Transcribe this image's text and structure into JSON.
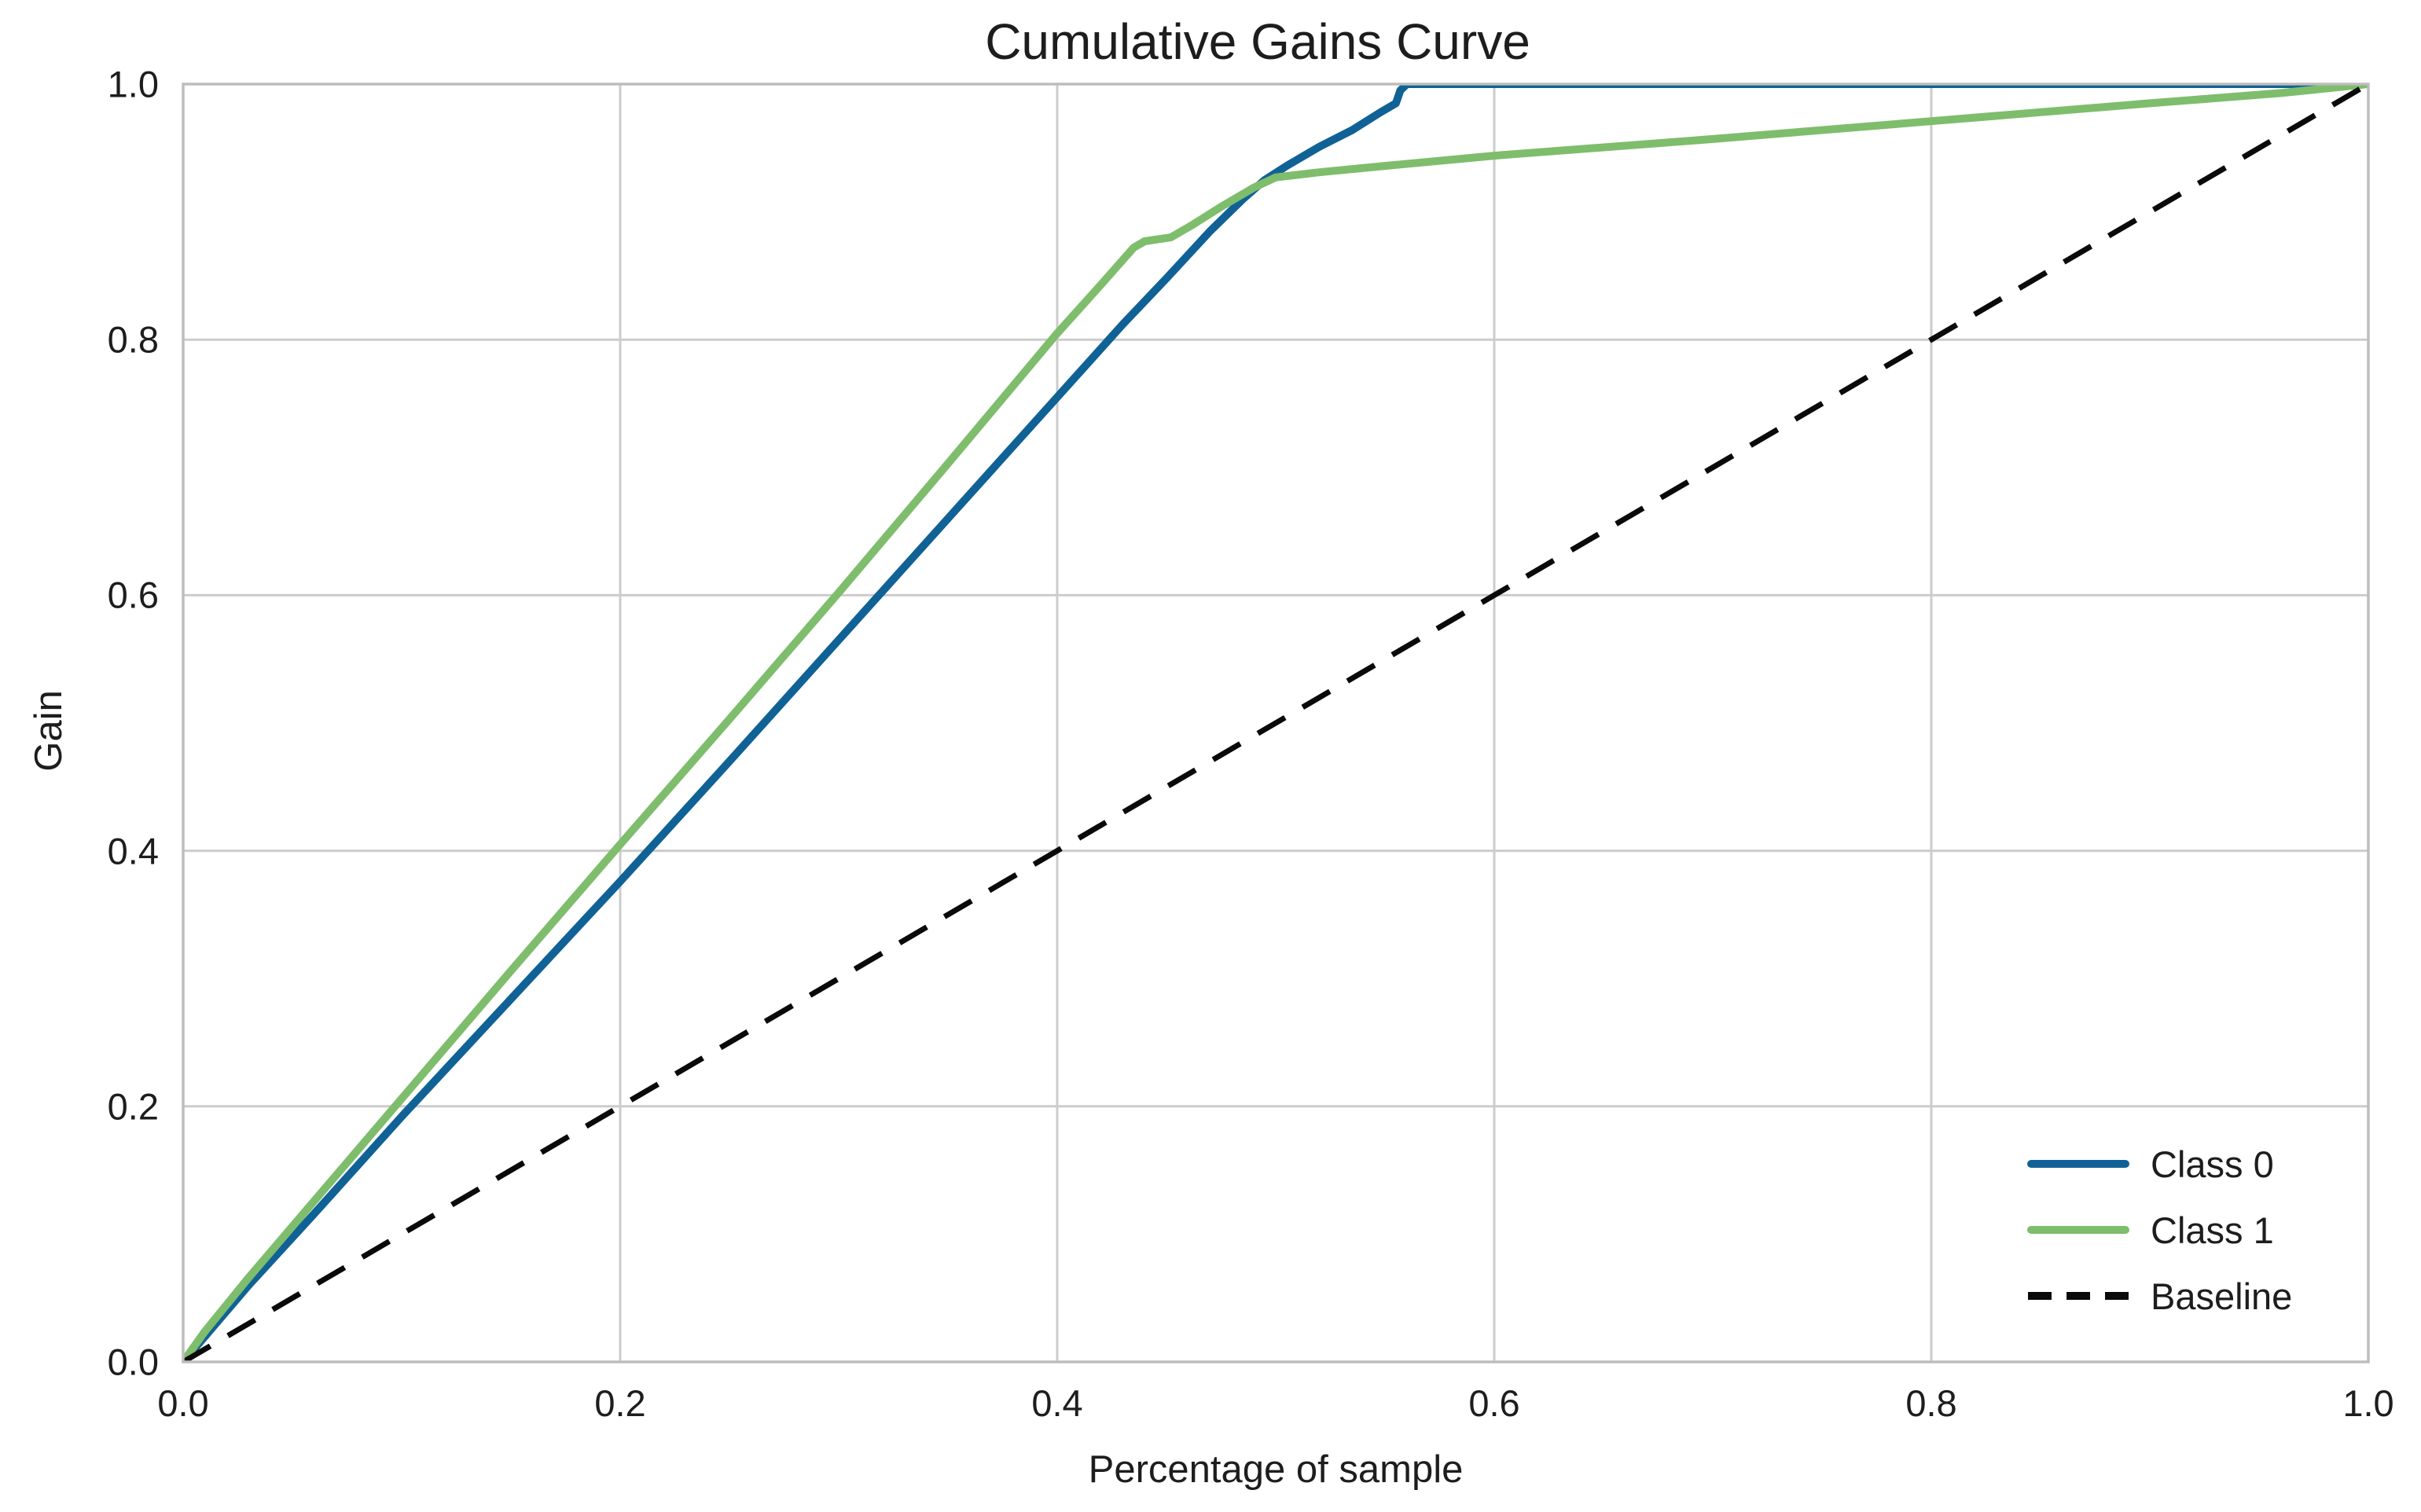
{
  "chart_data": {
    "type": "line",
    "title": "Cumulative Gains Curve",
    "xlabel": "Percentage of sample",
    "ylabel": "Gain",
    "xlim": [
      0.0,
      1.0
    ],
    "ylim": [
      0.0,
      1.0
    ],
    "xticks": [
      "0.0",
      "0.2",
      "0.4",
      "0.6",
      "0.8",
      "1.0"
    ],
    "yticks": [
      "0.0",
      "0.2",
      "0.4",
      "0.6",
      "0.8",
      "1.0"
    ],
    "grid": true,
    "legend_position": "lower right",
    "series": [
      {
        "name": "Class 0",
        "color": "#106296",
        "style": "solid",
        "width": 10,
        "points": [
          [
            0.0,
            0.0
          ],
          [
            0.01,
            0.02
          ],
          [
            0.03,
            0.06
          ],
          [
            0.06,
            0.116
          ],
          [
            0.1,
            0.192
          ],
          [
            0.15,
            0.284
          ],
          [
            0.2,
            0.376
          ],
          [
            0.25,
            0.47
          ],
          [
            0.3,
            0.565
          ],
          [
            0.35,
            0.66
          ],
          [
            0.4,
            0.755
          ],
          [
            0.43,
            0.812
          ],
          [
            0.45,
            0.848
          ],
          [
            0.47,
            0.885
          ],
          [
            0.485,
            0.91
          ],
          [
            0.495,
            0.925
          ],
          [
            0.505,
            0.936
          ],
          [
            0.52,
            0.951
          ],
          [
            0.535,
            0.964
          ],
          [
            0.548,
            0.978
          ],
          [
            0.555,
            0.985
          ],
          [
            0.557,
            0.995
          ],
          [
            0.56,
            1.0
          ],
          [
            1.0,
            1.0
          ]
        ]
      },
      {
        "name": "Class 1",
        "color": "#7ebd6c",
        "style": "solid",
        "width": 10,
        "points": [
          [
            0.0,
            0.0
          ],
          [
            0.01,
            0.024
          ],
          [
            0.03,
            0.066
          ],
          [
            0.06,
            0.126
          ],
          [
            0.1,
            0.206
          ],
          [
            0.15,
            0.306
          ],
          [
            0.2,
            0.405
          ],
          [
            0.25,
            0.503
          ],
          [
            0.3,
            0.602
          ],
          [
            0.35,
            0.703
          ],
          [
            0.4,
            0.805
          ],
          [
            0.42,
            0.843
          ],
          [
            0.435,
            0.872
          ],
          [
            0.44,
            0.877
          ],
          [
            0.452,
            0.88
          ],
          [
            0.462,
            0.89
          ],
          [
            0.475,
            0.904
          ],
          [
            0.49,
            0.919
          ],
          [
            0.5,
            0.927
          ],
          [
            0.52,
            0.931
          ],
          [
            0.55,
            0.936
          ],
          [
            0.6,
            0.944
          ],
          [
            0.7,
            0.957
          ],
          [
            0.8,
            0.971
          ],
          [
            0.9,
            0.985
          ],
          [
            0.96,
            0.993
          ],
          [
            1.0,
            1.0
          ]
        ]
      },
      {
        "name": "Baseline",
        "color": "#0a0a0a",
        "style": "dashed",
        "width": 7,
        "points": [
          [
            0.0,
            0.0
          ],
          [
            1.0,
            1.0
          ]
        ]
      }
    ]
  },
  "colors": {
    "background": "#ffffff",
    "grid": "#cccccc",
    "spine": "#bdbdbd",
    "text": "#1d1d1d"
  }
}
